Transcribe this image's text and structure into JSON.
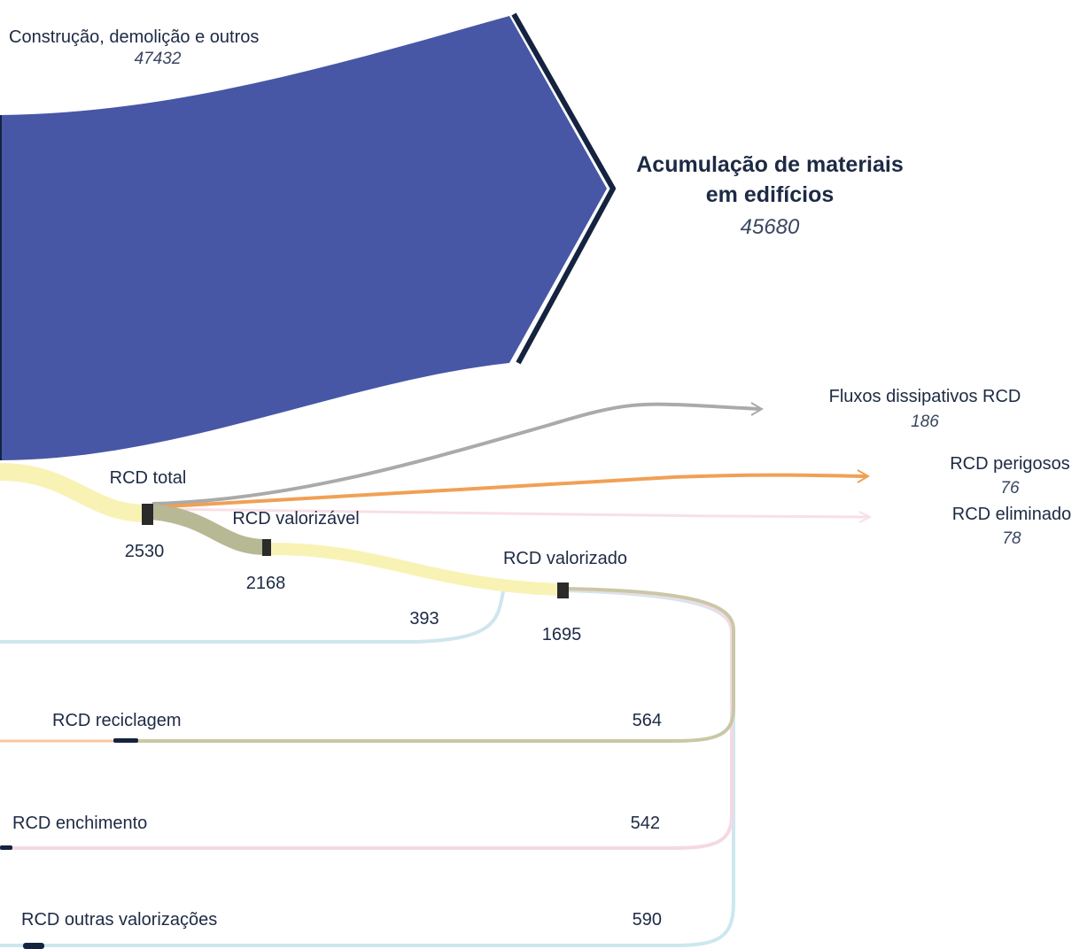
{
  "colors": {
    "construction_flow": "#4757a6",
    "accumulation_border": "#142340",
    "rcd_total_flow": "#f8f3b5",
    "valorizable_flow": "#b7b894",
    "dissipative_flow": "#aaaaaa",
    "hazardous_flow": "#f0a055",
    "eliminated_flow": "#f8dfe8",
    "backflow": "#cfe6ee",
    "recycling_flow": "#c9c8a6",
    "filling_flow": "#f4d9e4",
    "other_flow": "#cce7f0",
    "node": "#2b2b2b"
  },
  "nodes": {
    "construction": {
      "label": "Construção, demolição e outros",
      "value": "47432"
    },
    "accumulation": {
      "label_line1": "Acumulação de materiais",
      "label_line2": "em edifícios",
      "value": "45680"
    },
    "dissipative": {
      "label": "Fluxos dissipativos RCD",
      "value": "186"
    },
    "hazardous": {
      "label": "RCD perigosos",
      "value": "76"
    },
    "eliminated": {
      "label": "RCD eliminado",
      "value": "78"
    },
    "rcd_total": {
      "label": "RCD total",
      "value": "2530"
    },
    "valorizable": {
      "label": "RCD valorizável",
      "value": "2168"
    },
    "valorized": {
      "label": "RCD valorizado",
      "value": "1695"
    },
    "backflow": {
      "value": "393"
    },
    "recycling": {
      "label": "RCD reciclagem",
      "value": "564"
    },
    "filling": {
      "label": "RCD enchimento",
      "value": "542"
    },
    "other": {
      "label": "RCD outras valorizações",
      "value": "590"
    }
  }
}
